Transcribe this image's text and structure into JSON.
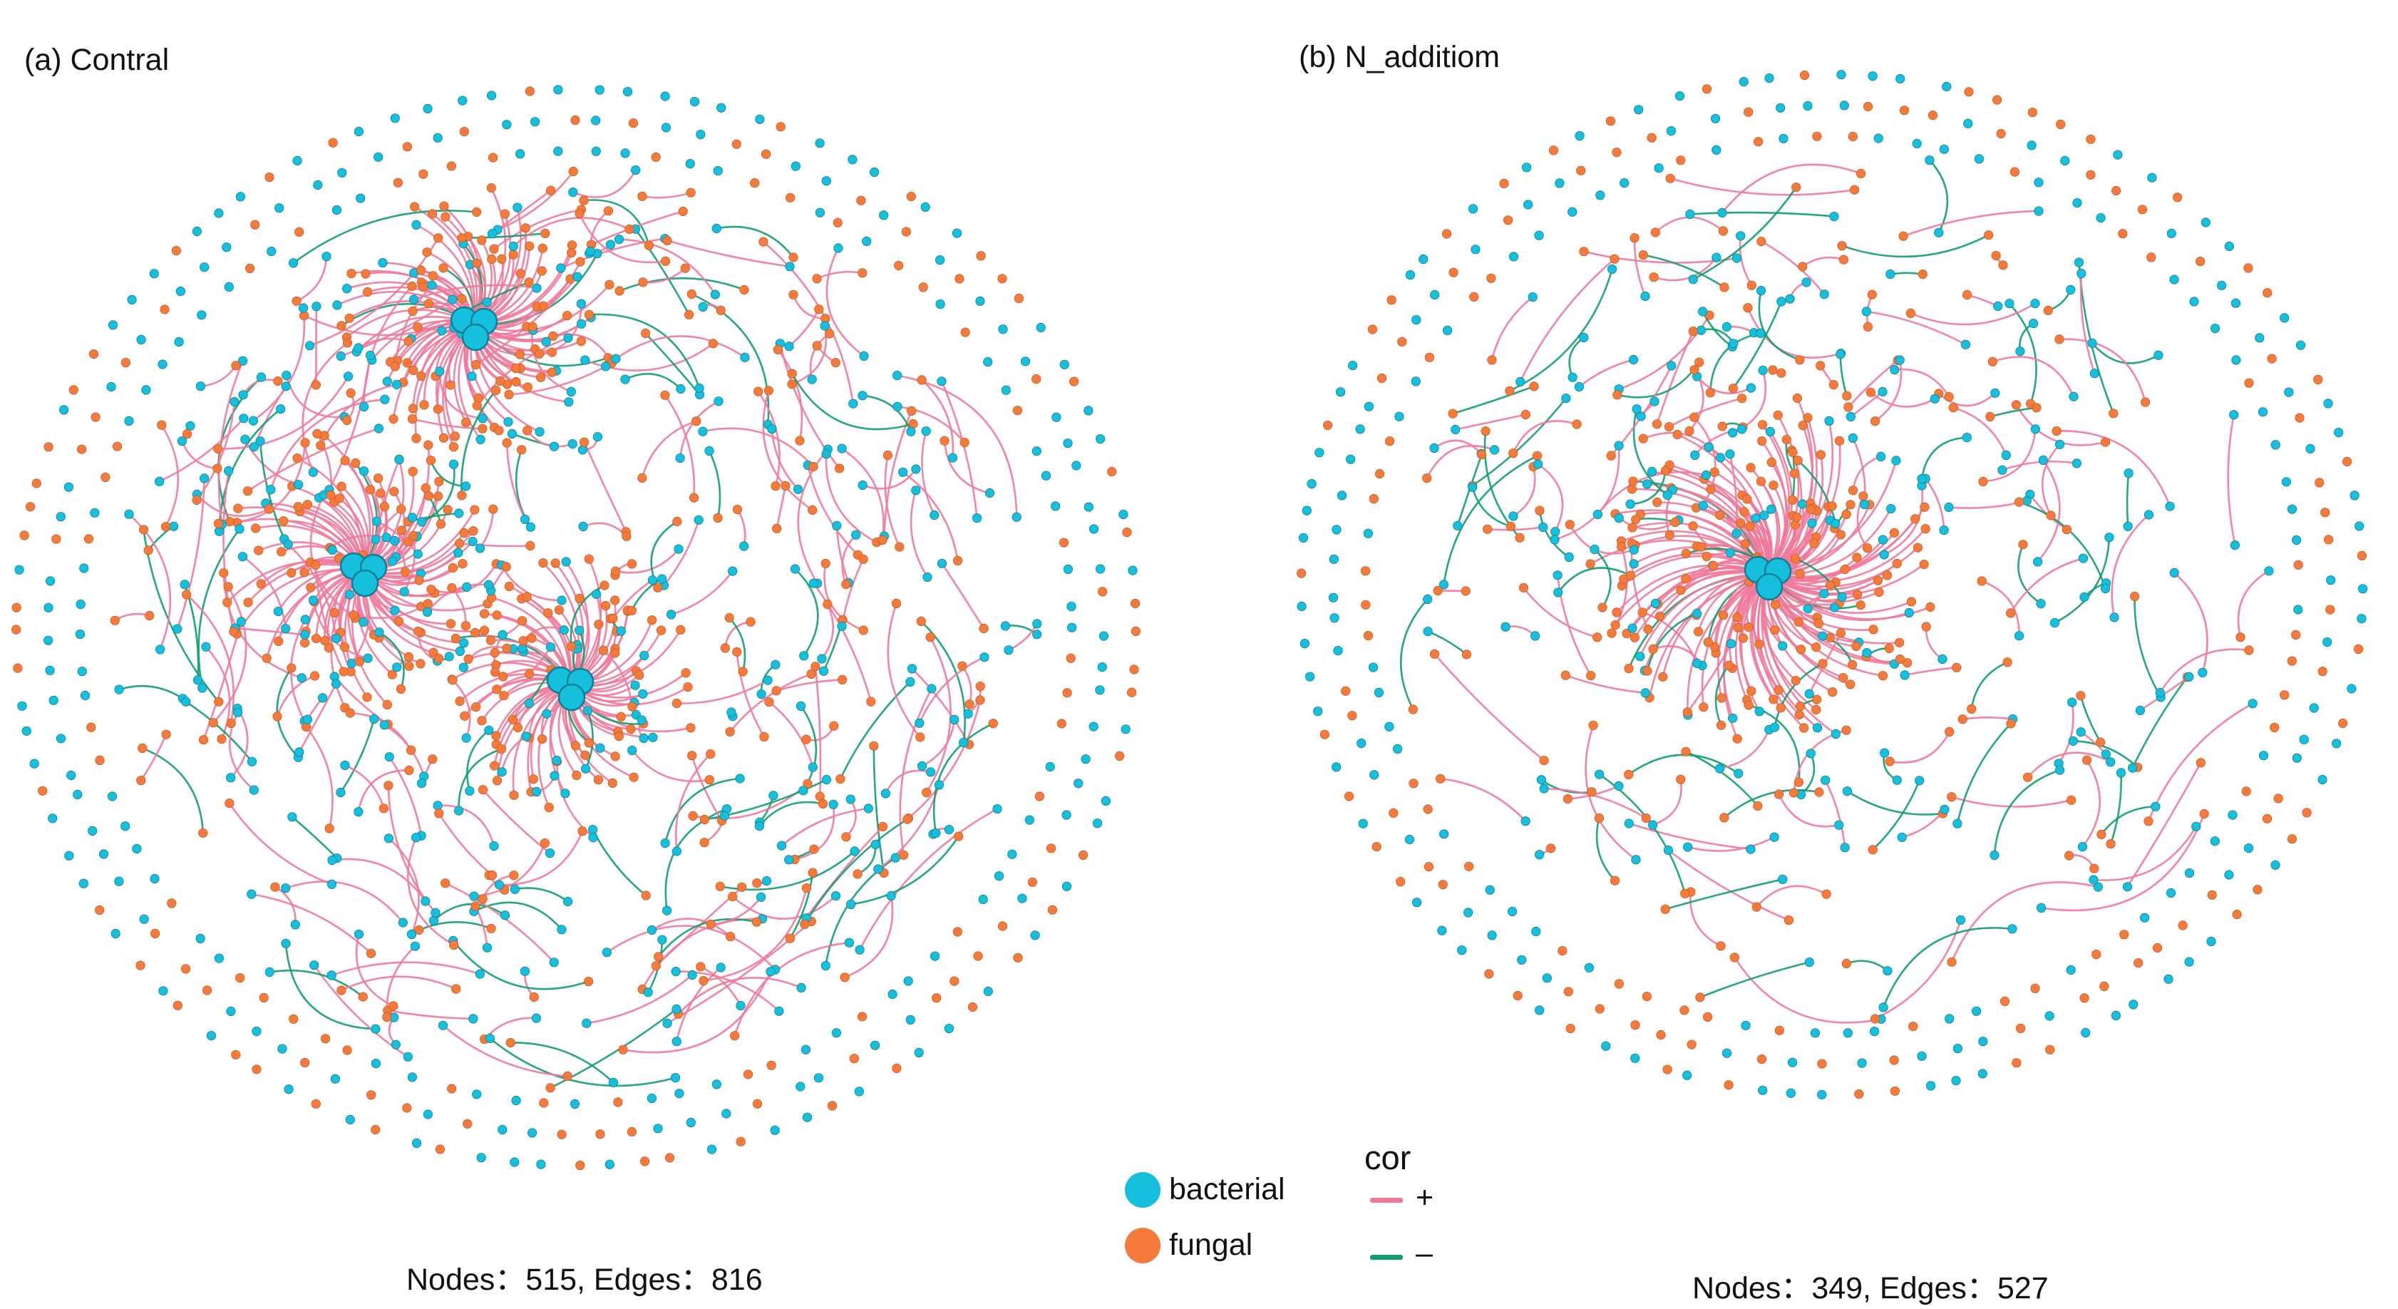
{
  "panels": [
    {
      "title": "(a) Contral",
      "caption": "Nodes：515, Edges：816"
    },
    {
      "title": "(b) N_additiom",
      "caption": "Nodes：349, Edges：527"
    }
  ],
  "legend": {
    "node_types": [
      {
        "label": "bacterial",
        "color": "#16c0dc"
      },
      {
        "label": "fungal",
        "color": "#f47b3c"
      }
    ],
    "cor_title": "cor",
    "cor_types": [
      {
        "label": "+",
        "color": "#f0799a"
      },
      {
        "label": "–",
        "color": "#0f9f6e"
      }
    ]
  },
  "colors": {
    "bacterial": "#16c0dc",
    "fungal": "#f47b3c",
    "positive": "#f0799a",
    "negative": "#0f9f6e",
    "node_outline": "#0b7f97"
  }
}
